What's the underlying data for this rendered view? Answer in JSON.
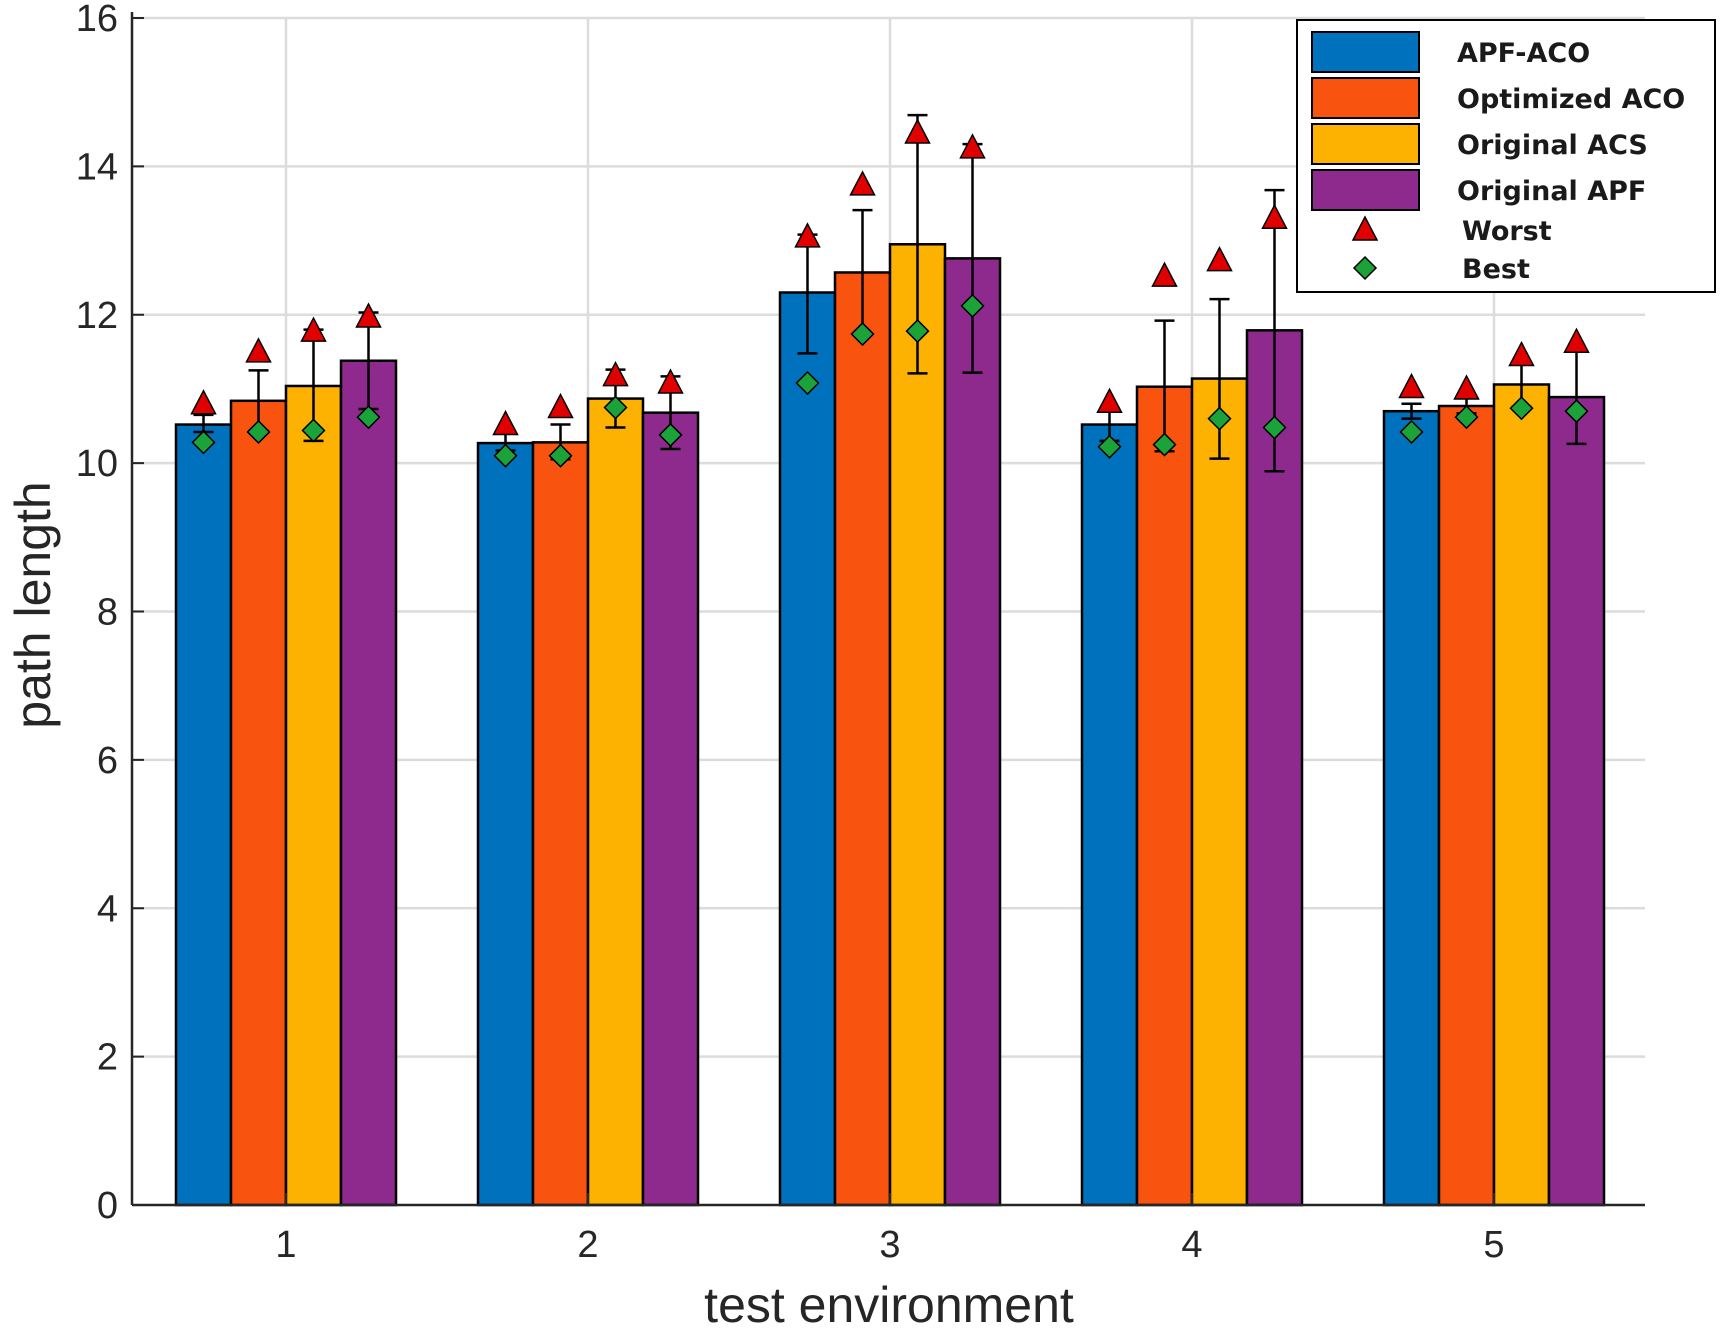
{
  "chart_data": {
    "type": "bar",
    "xlabel": "test environment",
    "ylabel": "path length",
    "ylim": [
      0,
      16
    ],
    "yticks": [
      0,
      2,
      4,
      6,
      8,
      10,
      12,
      14,
      16
    ],
    "grid": true,
    "legend_position": "top-right",
    "categories": [
      "1",
      "2",
      "3",
      "4",
      "5"
    ],
    "series": [
      {
        "name": "APF-ACO",
        "color": "#0072BD",
        "values": [
          10.52,
          10.27,
          12.3,
          10.52,
          10.7
        ],
        "err_low": [
          10.42,
          10.17,
          11.48,
          10.3,
          10.6
        ],
        "err_high": [
          10.65,
          10.4,
          13.08,
          10.7,
          10.8
        ],
        "worst": [
          10.8,
          10.52,
          13.05,
          10.82,
          11.02
        ],
        "best": [
          10.28,
          10.1,
          11.08,
          10.22,
          10.42
        ]
      },
      {
        "name": "Optimized ACO",
        "color": "#F95310",
        "values": [
          10.84,
          10.28,
          12.57,
          11.03,
          10.77
        ],
        "err_low": [
          10.44,
          10.05,
          11.73,
          10.16,
          10.67
        ],
        "err_high": [
          11.25,
          10.52,
          13.41,
          11.92,
          10.9
        ],
        "worst": [
          11.5,
          10.75,
          13.75,
          12.52,
          11.0
        ],
        "best": [
          10.42,
          10.1,
          11.74,
          10.25,
          10.62
        ]
      },
      {
        "name": "Original ACS",
        "color": "#FDB101",
        "values": [
          11.04,
          10.87,
          12.95,
          11.14,
          11.06
        ],
        "err_low": [
          10.3,
          10.48,
          11.21,
          10.06,
          10.76
        ],
        "err_high": [
          11.8,
          11.26,
          14.69,
          12.21,
          11.35
        ],
        "worst": [
          11.78,
          11.18,
          14.45,
          12.73,
          11.45
        ],
        "best": [
          10.44,
          10.75,
          11.78,
          10.6,
          10.74
        ]
      },
      {
        "name": "Original APF",
        "color": "#8E2A8D",
        "values": [
          11.38,
          10.68,
          12.76,
          11.79,
          10.89
        ],
        "err_low": [
          10.73,
          10.19,
          11.22,
          9.89,
          10.26
        ],
        "err_high": [
          12.03,
          11.17,
          14.3,
          13.68,
          11.52
        ],
        "worst": [
          11.97,
          11.08,
          14.25,
          13.3,
          11.63
        ],
        "best": [
          10.62,
          10.38,
          12.12,
          10.48,
          10.7
        ]
      }
    ],
    "legend": [
      {
        "label": "APF-ACO",
        "kind": "bar",
        "color": "#0072BD"
      },
      {
        "label": "Optimized ACO",
        "kind": "bar",
        "color": "#F95310"
      },
      {
        "label": "Original ACS",
        "kind": "bar",
        "color": "#FDB101"
      },
      {
        "label": "Original APF",
        "kind": "bar",
        "color": "#8E2A8D"
      },
      {
        "label": "Worst",
        "kind": "triangle",
        "color": "#E00000"
      },
      {
        "label": "Best",
        "kind": "diamond",
        "color": "#1BA33A"
      }
    ]
  }
}
